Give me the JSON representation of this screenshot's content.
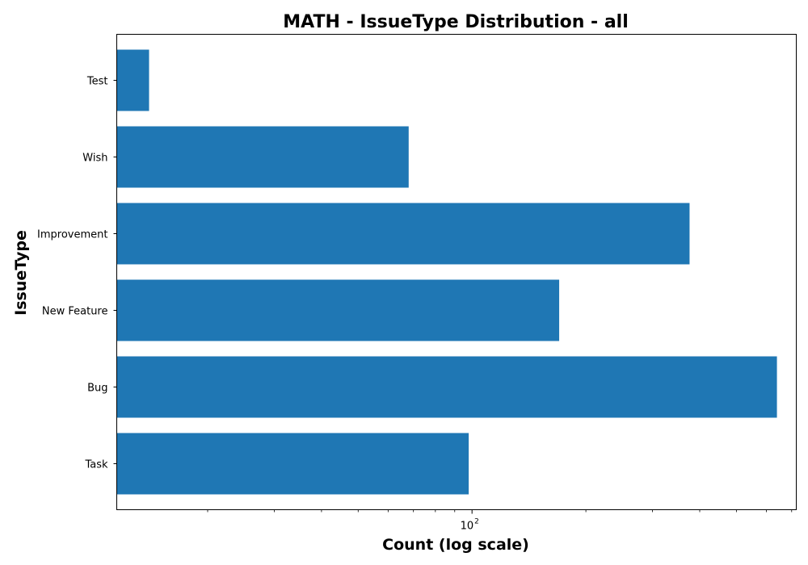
{
  "chart_data": {
    "type": "bar",
    "orientation": "horizontal",
    "title": "MATH - IssueType Distribution - all",
    "xlabel": "Count (log scale)",
    "ylabel": "IssueType",
    "x_scale": "log",
    "xlim": [
      11.5,
      720
    ],
    "x_major_ticks": [
      {
        "value": 100,
        "base": "10",
        "exponent": "2"
      }
    ],
    "x_minor_ticks": [
      20,
      30,
      40,
      50,
      60,
      70,
      80,
      90,
      200,
      300,
      400,
      500,
      600,
      700
    ],
    "categories": [
      "Task",
      "Bug",
      "New Feature",
      "Improvement",
      "Wish",
      "Test"
    ],
    "values": [
      98,
      640,
      170,
      376,
      68,
      14
    ],
    "bar_color": "#1f77b4",
    "grid": false,
    "legend": "none"
  }
}
